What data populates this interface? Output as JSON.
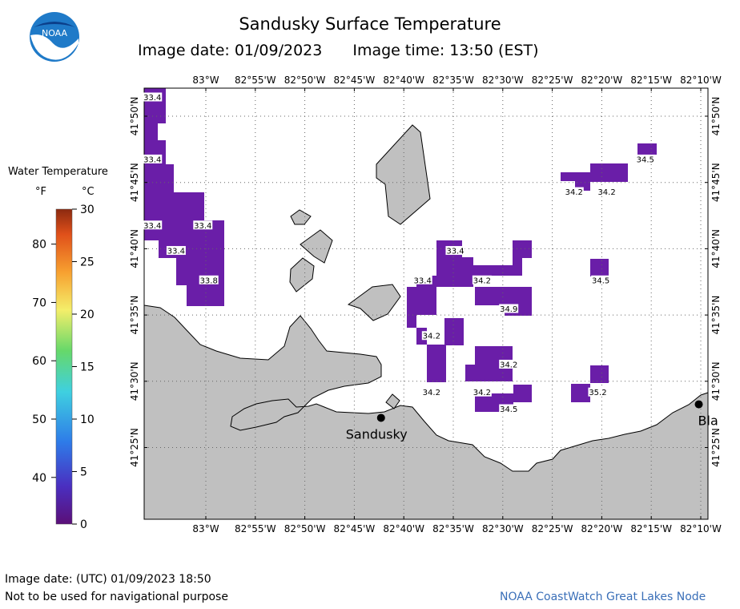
{
  "header": {
    "title": "Sandusky Surface Temperature",
    "image_date": "Image date: 01/09/2023",
    "image_time": "Image time: 13:50 (EST)",
    "logo_text": "NOAA"
  },
  "legend": {
    "title": "Water Temperature",
    "unit_f": "°F",
    "unit_c": "°C",
    "f_ticks": [
      "80",
      "70",
      "60",
      "50",
      "40"
    ],
    "c_ticks": [
      "30",
      "25",
      "20",
      "15",
      "10",
      "5",
      "0"
    ]
  },
  "axes": {
    "lon_labels": [
      "83°W",
      "82°55'W",
      "82°50'W",
      "82°45'W",
      "82°40'W",
      "82°35'W",
      "82°30'W",
      "82°25'W",
      "82°20'W",
      "82°15'W",
      "82°10'W"
    ],
    "lat_labels": [
      "41°50'N",
      "41°45'N",
      "41°40'N",
      "41°35'N",
      "41°30'N",
      "41°25'N"
    ]
  },
  "temperatures": [
    {
      "label": "33.4",
      "lon": -83.09,
      "lat": 41.857
    },
    {
      "label": "33.4",
      "lon": -83.09,
      "lat": 41.779
    },
    {
      "label": "33.4",
      "lon": -83.09,
      "lat": 41.696
    },
    {
      "label": "33.4",
      "lon": -83.005,
      "lat": 41.696
    },
    {
      "label": "33.4",
      "lon": -83.05,
      "lat": 41.664
    },
    {
      "label": "33.8",
      "lon": -82.995,
      "lat": 41.627
    },
    {
      "label": "33.4",
      "lon": -82.58,
      "lat": 41.664
    },
    {
      "label": "33.4",
      "lon": -82.635,
      "lat": 41.627
    },
    {
      "label": "34.2",
      "lon": -82.535,
      "lat": 41.627
    },
    {
      "label": "34.9",
      "lon": -82.49,
      "lat": 41.591
    },
    {
      "label": "34.2",
      "lon": -82.62,
      "lat": 41.557
    },
    {
      "label": "34.2",
      "lon": -82.49,
      "lat": 41.521
    },
    {
      "label": "34.2",
      "lon": -82.62,
      "lat": 41.486
    },
    {
      "label": "34.2",
      "lon": -82.535,
      "lat": 41.486
    },
    {
      "label": "34.5",
      "lon": -82.49,
      "lat": 41.465
    },
    {
      "label": "34.2",
      "lon": -82.38,
      "lat": 41.738
    },
    {
      "label": "34.2",
      "lon": -82.325,
      "lat": 41.738
    },
    {
      "label": "34.5",
      "lon": -82.26,
      "lat": 41.779
    },
    {
      "label": "34.5",
      "lon": -82.335,
      "lat": 41.627
    },
    {
      "label": "35.2",
      "lon": -82.34,
      "lat": 41.486
    }
  ],
  "cities": [
    {
      "name": "Sandusky",
      "lon": -82.705,
      "lat": 41.454
    },
    {
      "name": "Bla",
      "lon": -82.17,
      "lat": 41.471
    }
  ],
  "colors": {
    "land": "#c0c0c0",
    "water": "#ffffff",
    "cold_water": "#6a1ea8",
    "credit": "#3a6fb8"
  },
  "footer": {
    "utc_date": "Image date: (UTC) 01/09/2023  18:50",
    "disclaimer": "Not to be used for navigational purpose",
    "credit": "NOAA CoastWatch Great Lakes Node"
  }
}
